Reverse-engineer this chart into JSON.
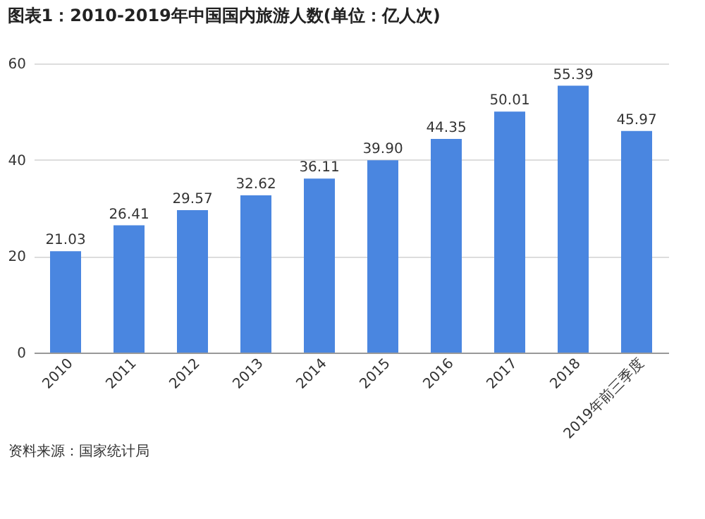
{
  "chart_data": {
    "type": "bar",
    "title": "图表1：2010-2019年中国国内旅游人数(单位：亿人次)",
    "categories": [
      "2010",
      "2011",
      "2012",
      "2013",
      "2014",
      "2015",
      "2016",
      "2017",
      "2018",
      "2019年前三季度"
    ],
    "values": [
      21.03,
      26.41,
      29.57,
      32.62,
      36.11,
      39.9,
      44.35,
      50.01,
      55.39,
      45.97
    ],
    "value_labels": [
      "21.03",
      "26.41",
      "29.57",
      "32.62",
      "36.11",
      "39.90",
      "44.35",
      "50.01",
      "55.39",
      "45.97"
    ],
    "color": "#4a86e0",
    "ylim": [
      0,
      60
    ],
    "yticks": [
      0,
      20,
      40,
      60
    ],
    "grid": "y",
    "annotations": [
      "资料来源：国家统计局"
    ]
  }
}
